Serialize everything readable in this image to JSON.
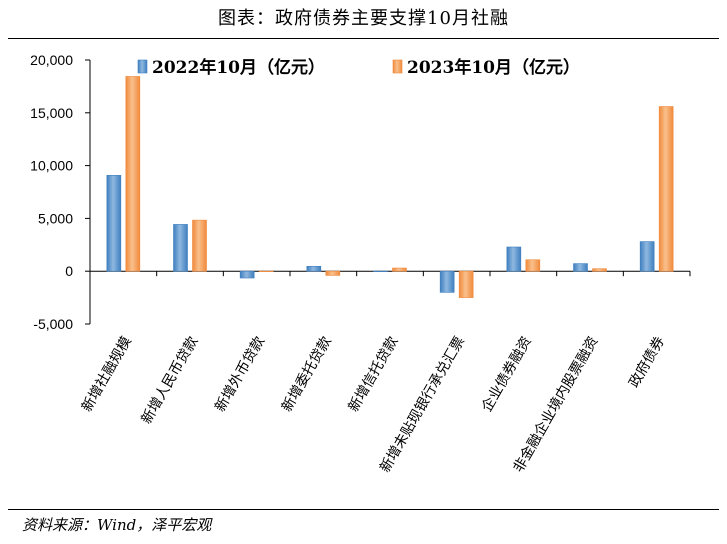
{
  "title": "图表：政府债券主要支撑10月社融",
  "source": "资料来源：Wind，泽平宏观",
  "colors": {
    "series_2022": "#3f7fbf",
    "series_2022_light": "#8fb8e0",
    "series_2023": "#f08a3c",
    "series_2023_light": "#f9c08c"
  },
  "chart_data": {
    "type": "bar",
    "title": "图表：政府债券主要支撑10月社融",
    "categories": [
      "新增社融规模",
      "新增人民币贷款",
      "新增外币贷款",
      "新增委托贷款",
      "新增信托贷款",
      "新增未贴现银行承兑汇票",
      "企业债券融资",
      "非金融企业境内股票融资",
      "政府债券"
    ],
    "series": [
      {
        "name": "2022年10月（亿元）",
        "values": [
          9079,
          4431,
          -645,
          465,
          -20,
          -2006,
          2292,
          720,
          2806
        ]
      },
      {
        "name": "2023年10月（亿元）",
        "values": [
          18441,
          4837,
          -20,
          -400,
          300,
          -2500,
          1085,
          240,
          15595
        ]
      }
    ],
    "ylim": [
      -5000,
      20000
    ],
    "yticks": [
      -5000,
      0,
      5000,
      10000,
      15000,
      20000
    ],
    "ytick_labels": [
      "-5,000",
      "0",
      "5,000",
      "10,000",
      "15,000",
      "20,000"
    ],
    "legend_position": "top",
    "grid": false
  }
}
